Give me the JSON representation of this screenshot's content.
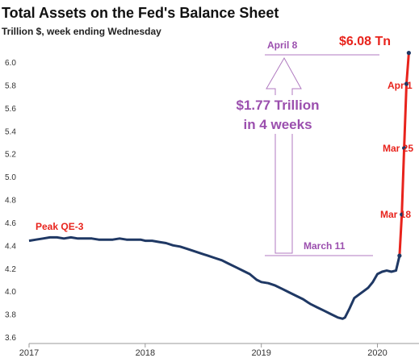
{
  "chart_data": {
    "type": "line",
    "title": "Total Assets on the Fed's Balance Sheet",
    "subtitle": "Trillion $, week ending Wednesday",
    "xlabel": "",
    "ylabel": "",
    "xlim": [
      2017.0,
      2020.33
    ],
    "ylim": [
      3.6,
      6.1
    ],
    "yticks": [
      "3.6",
      "3.8",
      "4.0",
      "4.2",
      "4.4",
      "4.6",
      "4.8",
      "5.0",
      "5.2",
      "5.4",
      "5.6",
      "5.8",
      "6.0"
    ],
    "xticks": [
      {
        "value": 2017,
        "label": "2017"
      },
      {
        "value": 2018,
        "label": "2018"
      },
      {
        "value": 2019,
        "label": "2019"
      },
      {
        "value": 2020,
        "label": "2020"
      }
    ],
    "grid": false,
    "colors": {
      "series": "#1f3864",
      "surge": "#e8231c",
      "annotation": "#9b4fae",
      "red_text": "#e8231c"
    },
    "series": [
      {
        "points": [
          [
            2017.0,
            4.44
          ],
          [
            2017.06,
            4.45
          ],
          [
            2017.12,
            4.46
          ],
          [
            2017.18,
            4.47
          ],
          [
            2017.24,
            4.47
          ],
          [
            2017.3,
            4.46
          ],
          [
            2017.36,
            4.47
          ],
          [
            2017.42,
            4.46
          ],
          [
            2017.48,
            4.46
          ],
          [
            2017.54,
            4.46
          ],
          [
            2017.6,
            4.45
          ],
          [
            2017.66,
            4.45
          ],
          [
            2017.72,
            4.45
          ],
          [
            2017.78,
            4.46
          ],
          [
            2017.84,
            4.45
          ],
          [
            2017.9,
            4.45
          ],
          [
            2017.96,
            4.45
          ],
          [
            2018.0,
            4.44
          ],
          [
            2018.06,
            4.44
          ],
          [
            2018.12,
            4.43
          ],
          [
            2018.18,
            4.42
          ],
          [
            2018.24,
            4.4
          ],
          [
            2018.3,
            4.39
          ],
          [
            2018.36,
            4.37
          ],
          [
            2018.42,
            4.35
          ],
          [
            2018.48,
            4.33
          ],
          [
            2018.54,
            4.31
          ],
          [
            2018.6,
            4.29
          ],
          [
            2018.66,
            4.27
          ],
          [
            2018.72,
            4.24
          ],
          [
            2018.78,
            4.21
          ],
          [
            2018.84,
            4.18
          ],
          [
            2018.9,
            4.15
          ],
          [
            2018.96,
            4.1
          ],
          [
            2019.0,
            4.08
          ],
          [
            2019.06,
            4.07
          ],
          [
            2019.12,
            4.05
          ],
          [
            2019.18,
            4.02
          ],
          [
            2019.24,
            3.99
          ],
          [
            2019.3,
            3.96
          ],
          [
            2019.36,
            3.93
          ],
          [
            2019.42,
            3.89
          ],
          [
            2019.48,
            3.86
          ],
          [
            2019.54,
            3.83
          ],
          [
            2019.6,
            3.8
          ],
          [
            2019.66,
            3.77
          ],
          [
            2019.7,
            3.76
          ],
          [
            2019.72,
            3.77
          ],
          [
            2019.76,
            3.85
          ],
          [
            2019.8,
            3.94
          ],
          [
            2019.84,
            3.97
          ],
          [
            2019.88,
            4.0
          ],
          [
            2019.92,
            4.03
          ],
          [
            2019.96,
            4.08
          ],
          [
            2020.0,
            4.15
          ],
          [
            2020.04,
            4.17
          ],
          [
            2020.08,
            4.18
          ],
          [
            2020.12,
            4.17
          ],
          [
            2020.16,
            4.18
          ],
          [
            2020.19,
            4.31
          ],
          [
            2020.21,
            4.67
          ],
          [
            2020.23,
            5.25
          ],
          [
            2020.25,
            5.81
          ],
          [
            2020.27,
            6.08
          ]
        ]
      }
    ],
    "markers": [
      {
        "x": 2020.19,
        "y": 4.31
      },
      {
        "x": 2020.21,
        "y": 4.67
      },
      {
        "x": 2020.23,
        "y": 5.25
      },
      {
        "x": 2020.25,
        "y": 5.81
      },
      {
        "x": 2020.27,
        "y": 6.08
      }
    ],
    "surge_start_x": 2020.19,
    "annotations": {
      "peak": "Peak QE-3",
      "total": "$6.08 Tn",
      "apr1": "Apr 1",
      "mar25": "Mar 25",
      "mar18": "Mar 18",
      "april8": "April 8",
      "march11": "March 11",
      "change_line1": "$1.77 Trillion",
      "change_line2": "in 4 weeks"
    }
  }
}
